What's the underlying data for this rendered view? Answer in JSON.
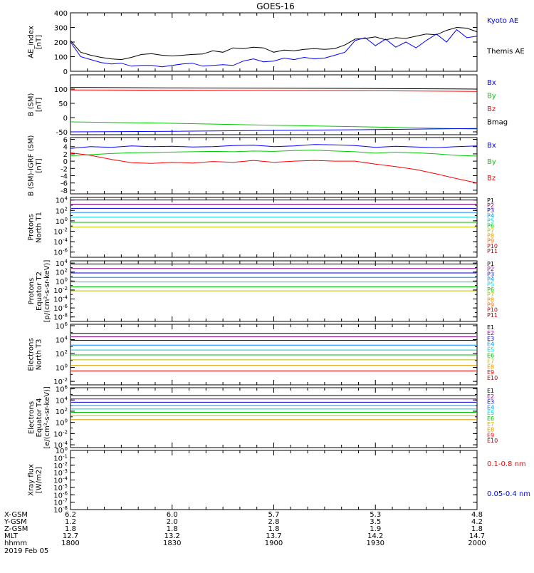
{
  "title": "GOES-16",
  "chart_data": {
    "type": "line",
    "title": "GOES-16",
    "x_axis": {
      "range_hhmm": [
        "1800",
        "2000"
      ],
      "tick_rows": [
        {
          "label": "X-GSM",
          "values": [
            "6.2",
            "6.0",
            "5.7",
            "5.3",
            "4.8"
          ]
        },
        {
          "label": "Y-GSM",
          "values": [
            "1.2",
            "2.0",
            "2.8",
            "3.5",
            "4.2"
          ]
        },
        {
          "label": "Z-GSM",
          "values": [
            "1.8",
            "1.8",
            "1.8",
            "1.9",
            "1.8"
          ]
        },
        {
          "label": "MLT",
          "values": [
            "12.7",
            "13.2",
            "13.7",
            "14.2",
            "14.7"
          ]
        },
        {
          "label": "hhmm",
          "values": [
            "1800",
            "1830",
            "1900",
            "1930",
            "2000"
          ]
        }
      ],
      "date": "2019 Feb 05"
    },
    "panels": [
      {
        "id": "ae",
        "ylabel": [
          "AE_index",
          "[nT]"
        ],
        "scale": "linear",
        "ylim": [
          0,
          400
        ],
        "ticks": [
          "0",
          "100",
          "200",
          "300",
          "400"
        ],
        "legend": [
          {
            "text": "Kyoto AE",
            "color": "#0000ff"
          },
          {
            "text": "Themis AE",
            "color": "#000000"
          }
        ],
        "series": [
          {
            "name": "Themis AE",
            "color": "#000000",
            "t": [
              0,
              3,
              6,
              9,
              12,
              15,
              18,
              21,
              24,
              27,
              30,
              33,
              36,
              39,
              42,
              45,
              48,
              51,
              54,
              57,
              60,
              63,
              66,
              69,
              72,
              75,
              78,
              81,
              84,
              87,
              90,
              93,
              96,
              99,
              102,
              105,
              108,
              111,
              114,
              117,
              120
            ],
            "v": [
              210,
              130,
              110,
              95,
              85,
              80,
              95,
              115,
              120,
              110,
              105,
              110,
              115,
              118,
              140,
              130,
              160,
              155,
              165,
              160,
              130,
              145,
              140,
              150,
              155,
              150,
              155,
              180,
              220,
              225,
              235,
              215,
              230,
              225,
              240,
              255,
              250,
              280,
              300,
              295,
              270
            ]
          },
          {
            "name": "Kyoto AE",
            "color": "#0000ff",
            "t": [
              0,
              3,
              6,
              9,
              12,
              15,
              18,
              21,
              24,
              27,
              30,
              33,
              36,
              39,
              42,
              45,
              48,
              51,
              54,
              57,
              60,
              63,
              66,
              69,
              72,
              75,
              78,
              81,
              84,
              87,
              90,
              93,
              96,
              99,
              102,
              105,
              108,
              111,
              114,
              117,
              120
            ],
            "v": [
              200,
              100,
              80,
              60,
              50,
              55,
              35,
              40,
              40,
              30,
              40,
              50,
              55,
              35,
              40,
              45,
              40,
              70,
              85,
              65,
              70,
              90,
              80,
              95,
              85,
              90,
              110,
              130,
              210,
              230,
              175,
              220,
              165,
              200,
              160,
              210,
              255,
              200,
              285,
              230,
              240
            ]
          }
        ]
      },
      {
        "id": "bsm",
        "ylabel": [
          "B (SM)",
          "[nT]"
        ],
        "scale": "linear",
        "ylim": [
          -60,
          150
        ],
        "ticks": [
          "-50",
          "0",
          "50",
          "100"
        ],
        "legend": [
          {
            "text": "Bx",
            "color": "#0000ff"
          },
          {
            "text": "By",
            "color": "#00cc00"
          },
          {
            "text": "Bz",
            "color": "#ff0000"
          },
          {
            "text": "Bmag",
            "color": "#000000"
          }
        ],
        "series": [
          {
            "name": "Bmag",
            "color": "#000000",
            "t": [
              0,
              30,
              60,
              90,
              120
            ],
            "v": [
              106,
              104,
              103,
              102,
              100
            ]
          },
          {
            "name": "Bz",
            "color": "#ff0000",
            "t": [
              0,
              30,
              60,
              90,
              120
            ],
            "v": [
              97,
              96,
              95,
              94,
              92
            ]
          },
          {
            "name": "By",
            "color": "#00cc00",
            "t": [
              0,
              30,
              60,
              90,
              120
            ],
            "v": [
              -15,
              -20,
              -27,
              -33,
              -40
            ]
          },
          {
            "name": "Bx",
            "color": "#0000ff",
            "t": [
              0,
              30,
              60,
              90,
              120
            ],
            "v": [
              -50,
              -48,
              -45,
              -42,
              -38
            ]
          }
        ]
      },
      {
        "id": "bigrf",
        "ylabel": [
          "B (SM)-IGRF (SM)",
          "[nT]"
        ],
        "scale": "linear",
        "ylim": [
          -9,
          6.5
        ],
        "ticks": [
          "-8",
          "-6",
          "-4",
          "-2",
          "0",
          "2",
          "4",
          "6"
        ],
        "legend": [
          {
            "text": "Bx",
            "color": "#0000ff"
          },
          {
            "text": "By",
            "color": "#00cc00"
          },
          {
            "text": "Bz",
            "color": "#ff0000"
          }
        ],
        "series": [
          {
            "name": "Bx",
            "color": "#0000ff",
            "t": [
              0,
              6,
              12,
              18,
              24,
              30,
              36,
              42,
              48,
              54,
              60,
              66,
              72,
              78,
              84,
              90,
              96,
              102,
              108,
              114,
              120
            ],
            "v": [
              3.5,
              4.0,
              3.8,
              4.2,
              4.0,
              4.1,
              3.9,
              4.0,
              4.3,
              4.4,
              4.0,
              4.2,
              4.6,
              4.5,
              4.3,
              3.8,
              4.1,
              3.9,
              3.7,
              4.0,
              4.2
            ]
          },
          {
            "name": "By",
            "color": "#00cc00",
            "t": [
              0,
              6,
              12,
              18,
              24,
              30,
              36,
              42,
              48,
              54,
              60,
              66,
              72,
              78,
              84,
              90,
              96,
              102,
              108,
              114,
              120
            ],
            "v": [
              1.5,
              1.8,
              2.1,
              2.3,
              2.4,
              2.5,
              2.6,
              2.7,
              2.6,
              2.8,
              2.7,
              2.9,
              3.0,
              2.8,
              2.6,
              2.2,
              2.5,
              2.3,
              2.0,
              1.6,
              1.4
            ]
          },
          {
            "name": "Bz",
            "color": "#ff0000",
            "t": [
              0,
              6,
              12,
              18,
              24,
              30,
              36,
              42,
              48,
              54,
              60,
              66,
              72,
              78,
              84,
              90,
              96,
              102,
              108,
              114,
              120
            ],
            "v": [
              2.3,
              1.6,
              0.5,
              -0.4,
              -0.6,
              -0.3,
              -0.5,
              -0.1,
              -0.3,
              0.2,
              -0.3,
              0.0,
              0.2,
              0.0,
              0.0,
              -0.8,
              -1.5,
              -2.3,
              -3.5,
              -4.8,
              -6.0
            ]
          }
        ]
      },
      {
        "id": "pn",
        "ylabel": [
          "Protons",
          "North T1"
        ],
        "scale": "log",
        "ylim_exp": [
          -7,
          4.5
        ],
        "ticks": [
          "10^4",
          "10^2",
          "10^0",
          "10^-2",
          "10^-4",
          "10^-6"
        ],
        "legend": [
          {
            "text": "P1",
            "color": "#000000"
          },
          {
            "text": "P2",
            "color": "#800080"
          },
          {
            "text": "P3",
            "color": "#0000cc"
          },
          {
            "text": "P4",
            "color": "#0088ff"
          },
          {
            "text": "P5",
            "color": "#00cccc"
          },
          {
            "text": "P6",
            "color": "#00bb00"
          },
          {
            "text": "P7",
            "color": "#bbbb00"
          },
          {
            "text": "P8",
            "color": "#dd9900"
          },
          {
            "text": "P9",
            "color": "#ff6600"
          },
          {
            "text": "P10",
            "color": "#dd0000"
          },
          {
            "text": "P11",
            "color": "#990000"
          }
        ],
        "flat_levels_exp": [
          4.0,
          3.2,
          2.4,
          1.6,
          0.7,
          -0.3,
          -1.2
        ]
      },
      {
        "id": "pe",
        "ylabel": [
          "Protons",
          "Equator T2",
          "[p/(cm²-s-sr-keV)]"
        ],
        "scale": "log",
        "ylim_exp": [
          -9,
          4.5
        ],
        "ticks": [
          "10^4",
          "10^2",
          "10^0",
          "10^-2",
          "10^-4",
          "10^-6",
          "10^-8"
        ],
        "legend": [
          {
            "text": "P1",
            "color": "#000000"
          },
          {
            "text": "P2",
            "color": "#800080"
          },
          {
            "text": "P3",
            "color": "#0000cc"
          },
          {
            "text": "P4",
            "color": "#0088ff"
          },
          {
            "text": "P5",
            "color": "#00cccc"
          },
          {
            "text": "P6",
            "color": "#00bb00"
          },
          {
            "text": "P7",
            "color": "#bbbb00"
          },
          {
            "text": "P8",
            "color": "#dd9900"
          },
          {
            "text": "P9",
            "color": "#ff6600"
          },
          {
            "text": "P10",
            "color": "#dd0000"
          },
          {
            "text": "P11",
            "color": "#990000"
          }
        ],
        "flat_levels_exp": [
          3.8,
          2.8,
          1.8,
          0.8,
          -0.2,
          -1.3,
          -2.2
        ]
      },
      {
        "id": "en",
        "ylabel": [
          "Electrons",
          "North T3"
        ],
        "scale": "log",
        "ylim_exp": [
          -2.5,
          6.2
        ],
        "ticks": [
          "10^6",
          "10^4",
          "10^2",
          "10^0",
          "10^-2"
        ],
        "legend": [
          {
            "text": "E1",
            "color": "#000000"
          },
          {
            "text": "E2",
            "color": "#800080"
          },
          {
            "text": "E3",
            "color": "#0000cc"
          },
          {
            "text": "E4",
            "color": "#0088ff"
          },
          {
            "text": "E5",
            "color": "#00cccc"
          },
          {
            "text": "E6",
            "color": "#00bb00"
          },
          {
            "text": "E7",
            "color": "#bbbb00"
          },
          {
            "text": "E8",
            "color": "#dd9900"
          },
          {
            "text": "E9",
            "color": "#dd0000"
          },
          {
            "text": "E10",
            "color": "#990000"
          }
        ],
        "flat_levels_exp": [
          4.9,
          4.4,
          3.9,
          3.2,
          2.5,
          1.8,
          1.1,
          0.3,
          -0.5
        ]
      },
      {
        "id": "ee",
        "ylabel": [
          "Electrons",
          "Equator T4",
          "[e/(cm²-s-sr-keV)]"
        ],
        "scale": "log",
        "ylim_exp": [
          -4.5,
          6.2
        ],
        "ticks": [
          "10^6",
          "10^4",
          "10^2",
          "10^0",
          "10^-2",
          "10^-4"
        ],
        "legend": [
          {
            "text": "E1",
            "color": "#000000"
          },
          {
            "text": "E2",
            "color": "#800080"
          },
          {
            "text": "E3",
            "color": "#0000cc"
          },
          {
            "text": "E4",
            "color": "#0088ff"
          },
          {
            "text": "E5",
            "color": "#00cccc"
          },
          {
            "text": "E6",
            "color": "#00bb00"
          },
          {
            "text": "E7",
            "color": "#bbbb00"
          },
          {
            "text": "E8",
            "color": "#dd9900"
          },
          {
            "text": "E9",
            "color": "#dd0000"
          },
          {
            "text": "E10",
            "color": "#990000"
          }
        ],
        "flat_levels_exp": [
          4.8,
          4.2,
          3.6,
          3.0,
          2.4,
          1.8,
          1.2,
          0.5
        ]
      },
      {
        "id": "xray",
        "ylabel": [
          "Xray flux",
          "[W/m2]"
        ],
        "scale": "log",
        "ylim_exp": [
          -8,
          0
        ],
        "ticks": [
          "10^0",
          "10^-1",
          "10^-2",
          "10^-3",
          "10^-4",
          "10^-5",
          "10^-6",
          "10^-7",
          "10^-8"
        ],
        "legend": [
          {
            "text": "0.1-0.8 nm",
            "color": "#ff0000"
          },
          {
            "text": "0.05-0.4 nm",
            "color": "#0000ff"
          }
        ]
      }
    ]
  }
}
